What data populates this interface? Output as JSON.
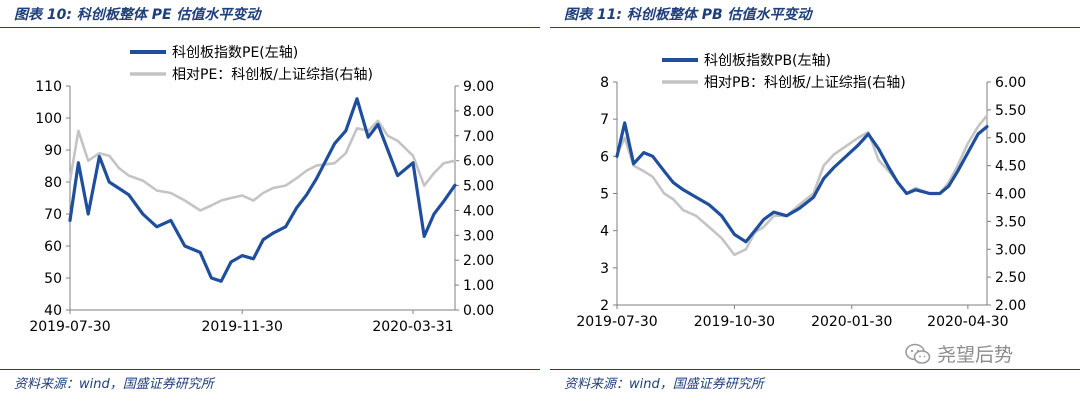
{
  "panels": [
    {
      "title": "图表 10:  科创板整体 PE 估值水平变动",
      "source": "资料来源：wind，国盛证券研究所"
    },
    {
      "title": "图表 11:  科创板整体 PB 估值水平变动",
      "source": "资料来源：wind，国盛证券研究所"
    }
  ],
  "watermark": {
    "text": "尧望后势",
    "icon": "wechat-icon"
  },
  "colors": {
    "primary": "#1f4e9c",
    "secondary": "#c4c4c4",
    "axis": "#7f7f7f",
    "title": "#1f3f7a"
  },
  "chart_data": [
    {
      "type": "line",
      "title": "",
      "x_ticks": [
        "2019-07-30",
        "2019-11-30",
        "2020-03-31"
      ],
      "x": [
        "2019-07-30",
        "2019-08-05",
        "2019-08-12",
        "2019-08-20",
        "2019-08-27",
        "2019-09-03",
        "2019-09-10",
        "2019-09-20",
        "2019-09-30",
        "2019-10-10",
        "2019-10-20",
        "2019-10-31",
        "2019-11-08",
        "2019-11-15",
        "2019-11-22",
        "2019-11-30",
        "2019-12-08",
        "2019-12-15",
        "2019-12-22",
        "2019-12-31",
        "2020-01-08",
        "2020-01-15",
        "2020-01-22",
        "2020-02-04",
        "2020-02-12",
        "2020-02-20",
        "2020-02-28",
        "2020-03-06",
        "2020-03-13",
        "2020-03-20",
        "2020-03-31",
        "2020-04-08",
        "2020-04-15",
        "2020-04-22",
        "2020-04-30"
      ],
      "y_left": {
        "min": 40,
        "max": 110,
        "step": 10
      },
      "y_right": {
        "min": 0,
        "max": 9,
        "step": 1,
        "decimals": 2
      },
      "legend_position": "top",
      "series": [
        {
          "name": "科创板指数PE(左轴)",
          "axis": "left",
          "color": "#1f4e9c",
          "values": [
            68,
            86,
            70,
            88,
            80,
            78,
            76,
            70,
            66,
            68,
            60,
            58,
            50,
            49,
            55,
            57,
            56,
            62,
            64,
            66,
            72,
            76,
            81,
            92,
            96,
            106,
            94,
            98,
            90,
            82,
            86,
            63,
            70,
            74,
            79
          ]
        },
        {
          "name": "相对PE：科创板/上证综指(右轴)",
          "axis": "right",
          "color": "#c4c4c4",
          "values": [
            5.2,
            7.2,
            6.0,
            6.3,
            6.2,
            5.7,
            5.4,
            5.2,
            4.8,
            4.7,
            4.4,
            4.0,
            4.2,
            4.4,
            4.5,
            4.6,
            4.4,
            4.7,
            4.9,
            5.0,
            5.3,
            5.6,
            5.8,
            5.9,
            6.3,
            7.3,
            7.2,
            7.6,
            7.0,
            6.8,
            6.2,
            5.0,
            5.5,
            5.9,
            6.0
          ]
        }
      ]
    },
    {
      "type": "line",
      "title": "",
      "x_ticks": [
        "2019-07-30",
        "2019-10-30",
        "2020-01-30",
        "2020-04-30"
      ],
      "x": [
        "2019-07-30",
        "2019-08-05",
        "2019-08-12",
        "2019-08-20",
        "2019-08-27",
        "2019-09-05",
        "2019-09-12",
        "2019-09-20",
        "2019-09-30",
        "2019-10-10",
        "2019-10-20",
        "2019-10-30",
        "2019-11-08",
        "2019-11-15",
        "2019-11-22",
        "2019-11-30",
        "2019-12-10",
        "2019-12-20",
        "2019-12-31",
        "2020-01-08",
        "2020-01-16",
        "2020-02-04",
        "2020-02-12",
        "2020-02-20",
        "2020-02-28",
        "2020-03-06",
        "2020-03-13",
        "2020-03-20",
        "2020-03-31",
        "2020-04-08",
        "2020-04-15",
        "2020-04-22",
        "2020-04-30",
        "2020-05-08",
        "2020-05-15"
      ],
      "y_left": {
        "min": 2,
        "max": 8,
        "step": 1
      },
      "y_right": {
        "min": 2.0,
        "max": 6.0,
        "step": 0.5,
        "decimals": 2
      },
      "legend_position": "top",
      "series": [
        {
          "name": "科创板指数PB(左轴)",
          "axis": "left",
          "color": "#1f4e9c",
          "values": [
            6.0,
            6.9,
            5.8,
            6.1,
            6.0,
            5.6,
            5.3,
            5.1,
            4.9,
            4.7,
            4.4,
            3.9,
            3.7,
            4.0,
            4.3,
            4.5,
            4.4,
            4.6,
            4.9,
            5.4,
            5.7,
            6.3,
            6.6,
            6.2,
            5.7,
            5.3,
            5.0,
            5.1,
            5.0,
            5.0,
            5.2,
            5.6,
            6.1,
            6.6,
            6.8
          ]
        },
        {
          "name": "相对PB：科创板/上证综指(右轴)",
          "axis": "right",
          "color": "#c4c4c4",
          "values": [
            4.7,
            5.0,
            4.5,
            4.4,
            4.3,
            4.0,
            3.9,
            3.7,
            3.6,
            3.4,
            3.2,
            2.9,
            3.0,
            3.3,
            3.4,
            3.6,
            3.6,
            3.8,
            4.0,
            4.5,
            4.7,
            5.0,
            5.1,
            4.6,
            4.4,
            4.2,
            4.0,
            4.1,
            4.0,
            4.0,
            4.2,
            4.5,
            4.9,
            5.2,
            5.4
          ]
        }
      ]
    }
  ]
}
